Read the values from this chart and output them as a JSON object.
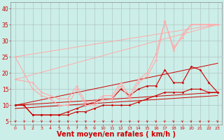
{
  "background_color": "#cceee8",
  "grid_color": "#aabbbb",
  "xlabel": "Vent moyen/en rafales ( km/h )",
  "xlabel_fontsize": 7,
  "xlabel_color": "#cc0000",
  "ylabel_color": "#cc0000",
  "tick_color": "#cc0000",
  "xlim": [
    -0.5,
    23.5
  ],
  "ylim": [
    4,
    42
  ],
  "yticks": [
    5,
    10,
    15,
    20,
    25,
    30,
    35,
    40
  ],
  "xticks": [
    0,
    1,
    2,
    3,
    4,
    5,
    6,
    7,
    8,
    9,
    10,
    11,
    12,
    13,
    14,
    15,
    16,
    17,
    18,
    19,
    20,
    21,
    22,
    23
  ],
  "series": [
    {
      "x": [
        0,
        1,
        2,
        3,
        4,
        5,
        6,
        7,
        8,
        9,
        10,
        11,
        12,
        13,
        14,
        15,
        16,
        17,
        18,
        19,
        20,
        21,
        22,
        23
      ],
      "y": [
        10,
        10,
        7,
        7,
        7,
        7,
        7,
        8,
        8,
        9,
        10,
        10,
        10,
        10,
        11,
        12,
        13,
        14,
        14,
        14,
        15,
        15,
        14,
        14
      ],
      "color": "#cc0000",
      "linewidth": 0.8,
      "marker": "D",
      "markersize": 1.5
    },
    {
      "x": [
        0,
        1,
        2,
        3,
        4,
        5,
        6,
        7,
        8,
        9,
        10,
        11,
        12,
        13,
        14,
        15,
        16,
        17,
        18,
        19,
        20,
        21,
        22,
        23
      ],
      "y": [
        10,
        10,
        7,
        7,
        7,
        7,
        8,
        9,
        10,
        11,
        12,
        12,
        15,
        13,
        15,
        16,
        16,
        21,
        17,
        17,
        22,
        21,
        17,
        14
      ],
      "color": "#cc0000",
      "linewidth": 0.8,
      "marker": "D",
      "markersize": 1.5
    },
    {
      "x": [
        0,
        2,
        3,
        4,
        5,
        6,
        7,
        8,
        9,
        10,
        11,
        12,
        13,
        14,
        15,
        16,
        17,
        18,
        19,
        20,
        21,
        22,
        23
      ],
      "y": [
        25,
        15,
        13,
        12,
        10,
        10,
        15,
        10,
        10,
        12,
        12,
        16,
        12,
        17,
        19,
        24,
        36,
        27,
        32,
        35,
        35,
        35,
        35
      ],
      "color": "#ffaaaa",
      "linewidth": 0.8,
      "marker": "D",
      "markersize": 1.5
    },
    {
      "x": [
        0,
        2,
        3,
        4,
        5,
        6,
        7,
        8,
        9,
        10,
        11,
        12,
        13,
        14,
        15,
        16,
        17,
        18,
        19,
        20,
        21,
        22,
        23
      ],
      "y": [
        18,
        17,
        14,
        13,
        12,
        12,
        16,
        11,
        11,
        13,
        13,
        17,
        13,
        18,
        20,
        26,
        36,
        28,
        31,
        35,
        35,
        35,
        35
      ],
      "color": "#ffaaaa",
      "linewidth": 0.8,
      "marker": "D",
      "markersize": 1.5
    },
    {
      "x": [
        0,
        23
      ],
      "y": [
        9,
        13
      ],
      "color": "#cc0000",
      "linewidth": 0.7,
      "marker": null,
      "markersize": 0
    },
    {
      "x": [
        0,
        23
      ],
      "y": [
        10,
        14
      ],
      "color": "#cc0000",
      "linewidth": 0.7,
      "marker": null,
      "markersize": 0
    },
    {
      "x": [
        0,
        23
      ],
      "y": [
        10,
        23
      ],
      "color": "#cc0000",
      "linewidth": 0.7,
      "marker": null,
      "markersize": 0
    },
    {
      "x": [
        0,
        23
      ],
      "y": [
        18,
        35
      ],
      "color": "#ffaaaa",
      "linewidth": 0.7,
      "marker": null,
      "markersize": 0
    },
    {
      "x": [
        0,
        23
      ],
      "y": [
        25,
        35
      ],
      "color": "#ffaaaa",
      "linewidth": 0.7,
      "marker": null,
      "markersize": 0
    }
  ],
  "arrow_color": "#cc0000",
  "arrow_angles": [
    225,
    225,
    225,
    200,
    200,
    200,
    200,
    200,
    200,
    200,
    200,
    200,
    200,
    200,
    200,
    180,
    160,
    160,
    160,
    160,
    160,
    160,
    160,
    160
  ]
}
